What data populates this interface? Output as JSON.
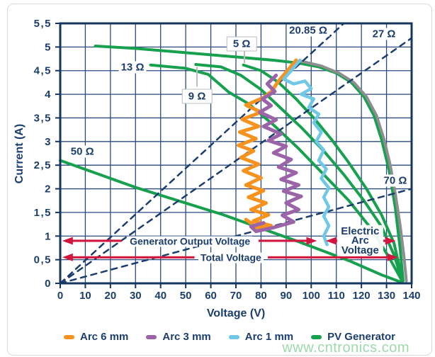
{
  "figure": {
    "watermark": "www.cntronics.com"
  },
  "colors": {
    "navy": "#1c3e6e",
    "grid": "#2a4a80",
    "frame": "#16355f",
    "green": "#17a14e",
    "gray_curve": "#8c8e90",
    "orange": "#f6921e",
    "purple": "#9b63a8",
    "cyan": "#6fc8e5",
    "red": "#d2173f",
    "leader": "#b9bcbf",
    "watermark_green": "#98d8a7"
  },
  "legend": {
    "items": [
      {
        "id": "arc-6mm",
        "label": "Arc 6 mm",
        "color": "#f6921e"
      },
      {
        "id": "arc-3mm",
        "label": "Arc 3 mm",
        "color": "#9b63a8"
      },
      {
        "id": "arc-1mm",
        "label": "Arc 1 mm",
        "color": "#6fc8e5"
      },
      {
        "id": "pv-generator",
        "label": "PV Generator",
        "color": "#17a14e"
      }
    ]
  },
  "chart_data": {
    "type": "line",
    "xlabel": "Voltage (V)",
    "ylabel": "Current (A)",
    "xlim": [
      0,
      140
    ],
    "ylim": [
      0,
      5.5
    ],
    "grid": true,
    "x_ticks": {
      "values": [
        0,
        10,
        20,
        30,
        40,
        50,
        60,
        70,
        80,
        90,
        100,
        110,
        120,
        130,
        140
      ],
      "labels": [
        "0",
        "10",
        "20",
        "30",
        "40",
        "50",
        "60",
        "70",
        "80",
        "90",
        "100",
        "110",
        "120",
        "130",
        "140"
      ]
    },
    "y_ticks": {
      "values": [
        0,
        0.5,
        1,
        1.5,
        2,
        2.5,
        3,
        3.5,
        4,
        4.5,
        5,
        5.5
      ],
      "labels": [
        "0",
        "0,5",
        "1",
        "1,5",
        "2",
        "2,5",
        "3",
        "3,5",
        "4",
        "4,5",
        "5",
        "5,5"
      ]
    },
    "series": [
      {
        "id": "load-50ohm",
        "color": "#17a14e",
        "style": "solid",
        "width": 4,
        "points": [
          [
            0,
            2.6
          ],
          [
            30,
            2.03
          ],
          [
            65,
            1.45
          ],
          [
            95,
            0.88
          ],
          [
            115,
            0.48
          ],
          [
            128,
            0.18
          ],
          [
            135.5,
            0.03
          ]
        ]
      },
      {
        "id": "pv-13ohm",
        "color": "#17a14e",
        "style": "solid",
        "width": 4,
        "points": [
          [
            36,
            4.62
          ],
          [
            50,
            4.55
          ],
          [
            59,
            4.42
          ],
          [
            67,
            4.05
          ],
          [
            75,
            3.8
          ],
          [
            85,
            3.35
          ],
          [
            95,
            2.85
          ],
          [
            105,
            2.3
          ],
          [
            115,
            1.75
          ],
          [
            124,
            1.15
          ],
          [
            131,
            0.55
          ],
          [
            136.2,
            0.05
          ]
        ]
      },
      {
        "id": "pv-9ohm",
        "color": "#17a14e",
        "style": "solid",
        "width": 4,
        "points": [
          [
            54,
            4.63
          ],
          [
            64,
            4.58
          ],
          [
            72,
            4.4
          ],
          [
            80,
            4.1
          ],
          [
            88,
            3.7
          ],
          [
            96,
            3.3
          ],
          [
            105,
            2.8
          ],
          [
            113,
            2.3
          ],
          [
            121,
            1.75
          ],
          [
            128,
            1.2
          ],
          [
            133,
            0.6
          ],
          [
            136.3,
            0.05
          ]
        ]
      },
      {
        "id": "pv-5ohm",
        "color": "#17a14e",
        "style": "solid",
        "width": 4,
        "points": [
          [
            73,
            4.62
          ],
          [
            80,
            4.5
          ],
          [
            87,
            4.25
          ],
          [
            94,
            3.9
          ],
          [
            101,
            3.5
          ],
          [
            108,
            3.05
          ],
          [
            115,
            2.55
          ],
          [
            122,
            2.0
          ],
          [
            128,
            1.45
          ],
          [
            133,
            0.85
          ],
          [
            136.4,
            0.05
          ]
        ]
      },
      {
        "id": "pv-main",
        "color": "#17a14e",
        "style": "solid",
        "width": 4,
        "points": [
          [
            14,
            5.02
          ],
          [
            30,
            4.97
          ],
          [
            50,
            4.88
          ],
          [
            70,
            4.79
          ],
          [
            85,
            4.72
          ],
          [
            95,
            4.66
          ],
          [
            103,
            4.58
          ],
          [
            110,
            4.45
          ],
          [
            116,
            4.25
          ],
          [
            121,
            3.95
          ],
          [
            125,
            3.55
          ],
          [
            128,
            3.05
          ],
          [
            131,
            2.4
          ],
          [
            133.5,
            1.6
          ],
          [
            135.5,
            0.7
          ],
          [
            136.6,
            0.05
          ]
        ]
      },
      {
        "id": "pv-gray",
        "color": "#8c8e90",
        "style": "solid",
        "width": 4,
        "points": [
          [
            96,
            4.7
          ],
          [
            104,
            4.6
          ],
          [
            111,
            4.45
          ],
          [
            117,
            4.25
          ],
          [
            122,
            3.95
          ],
          [
            126,
            3.55
          ],
          [
            129,
            3.05
          ],
          [
            131.5,
            2.5
          ],
          [
            133.5,
            1.9
          ],
          [
            135.5,
            1.2
          ],
          [
            137,
            0.55
          ],
          [
            137.9,
            0.05
          ]
        ]
      },
      {
        "id": "load-20.85ohm",
        "color": "#1c3e6e",
        "style": "dashed",
        "width": 2.5,
        "points": [
          [
            0,
            0
          ],
          [
            113,
            5.5
          ]
        ]
      },
      {
        "id": "load-27ohm",
        "color": "#1c3e6e",
        "style": "dashed",
        "width": 2.5,
        "points": [
          [
            0,
            0
          ],
          [
            140,
            5.19
          ]
        ]
      },
      {
        "id": "load-70ohm",
        "color": "#1c3e6e",
        "style": "dashed",
        "width": 2.5,
        "points": [
          [
            0,
            0
          ],
          [
            140,
            2.0
          ]
        ]
      },
      {
        "id": "arc-6mm",
        "color": "#f6921e",
        "style": "solid",
        "width": 5,
        "points": [
          [
            94,
            4.72
          ],
          [
            90.5,
            4.5
          ],
          [
            87,
            4.28
          ],
          [
            84,
            4.05
          ],
          [
            81,
            3.93
          ],
          [
            74,
            3.77
          ],
          [
            80,
            3.62
          ],
          [
            72.5,
            3.47
          ],
          [
            79,
            3.32
          ],
          [
            71.5,
            3.2
          ],
          [
            78,
            3.06
          ],
          [
            71,
            2.92
          ],
          [
            77,
            2.8
          ],
          [
            72,
            2.66
          ],
          [
            79,
            2.52
          ],
          [
            73,
            2.38
          ],
          [
            80,
            2.23
          ],
          [
            74,
            2.08
          ],
          [
            81,
            1.96
          ],
          [
            75,
            1.82
          ],
          [
            82,
            1.7
          ],
          [
            76,
            1.56
          ],
          [
            83,
            1.45
          ],
          [
            77,
            1.32
          ],
          [
            84,
            1.22
          ],
          [
            78.5,
            1.18
          ],
          [
            74,
            1.35
          ]
        ]
      },
      {
        "id": "arc-3mm",
        "color": "#9b63a8",
        "style": "solid",
        "width": 5,
        "points": [
          [
            86,
            4.4
          ],
          [
            82.5,
            4.22
          ],
          [
            85.5,
            4.06
          ],
          [
            80.5,
            3.9
          ],
          [
            84,
            3.76
          ],
          [
            79.5,
            3.62
          ],
          [
            86,
            3.46
          ],
          [
            81,
            3.32
          ],
          [
            88,
            3.16
          ],
          [
            83,
            3.02
          ],
          [
            90,
            2.9
          ],
          [
            85,
            2.76
          ],
          [
            92,
            2.62
          ],
          [
            87,
            2.46
          ],
          [
            94,
            2.34
          ],
          [
            88,
            2.2
          ],
          [
            95,
            2.08
          ],
          [
            89,
            1.95
          ],
          [
            96,
            1.84
          ],
          [
            90,
            1.7
          ],
          [
            95,
            1.56
          ],
          [
            88.5,
            1.44
          ],
          [
            93,
            1.3
          ],
          [
            85,
            1.18
          ],
          [
            78,
            1.1
          ],
          [
            76,
            1.2
          ],
          [
            81,
            1.28
          ]
        ]
      },
      {
        "id": "arc-1mm",
        "color": "#6fc8e5",
        "style": "solid",
        "width": 4.5,
        "points": [
          [
            95.5,
            4.72
          ],
          [
            92,
            4.5
          ],
          [
            89,
            4.32
          ],
          [
            93,
            4.22
          ],
          [
            97.5,
            4.28
          ],
          [
            100,
            4.12
          ],
          [
            96,
            4.0
          ],
          [
            101,
            3.9
          ],
          [
            99,
            3.72
          ],
          [
            103,
            3.58
          ],
          [
            101,
            3.4
          ],
          [
            104,
            3.2
          ],
          [
            102,
            3.0
          ],
          [
            105,
            2.82
          ],
          [
            103,
            2.6
          ],
          [
            106,
            2.42
          ],
          [
            104,
            2.22
          ],
          [
            107,
            2.02
          ],
          [
            105,
            1.82
          ],
          [
            107,
            1.62
          ],
          [
            105,
            1.42
          ],
          [
            107,
            1.22
          ],
          [
            105,
            1.0
          ],
          [
            106.3,
            0.82
          ]
        ]
      }
    ],
    "resistance_labels": [
      {
        "id": "13ohm",
        "text": "13 Ω",
        "x": 28.8,
        "y": 4.57,
        "boxed": false
      },
      {
        "id": "9ohm",
        "text": "9 Ω",
        "x": 54.5,
        "y": 3.95,
        "boxed": true,
        "leader": [
          [
            54.5,
            4.16
          ],
          [
            54.5,
            4.58
          ]
        ]
      },
      {
        "id": "5ohm",
        "text": "5 Ω",
        "x": 72.3,
        "y": 5.07,
        "boxed": true,
        "leader": [
          [
            73.4,
            4.93
          ],
          [
            73.4,
            4.66
          ]
        ]
      },
      {
        "id": "20.85ohm",
        "text": "20.85 Ω",
        "x": 98.8,
        "y": 5.35,
        "boxed": false
      },
      {
        "id": "27ohm",
        "text": "27 Ω",
        "x": 129,
        "y": 5.27,
        "boxed": false
      },
      {
        "id": "50ohm",
        "text": "50 Ω",
        "x": 8.8,
        "y": 2.79,
        "boxed": false
      },
      {
        "id": "70ohm",
        "text": "70 Ω",
        "x": 133.5,
        "y": 2.17,
        "boxed": false
      }
    ],
    "arrows": [
      {
        "id": "generator-output-voltage",
        "y": 0.9,
        "color": "#d2173f",
        "segments": [
          {
            "x1": 0.8,
            "x2": 24.5,
            "head": "left"
          },
          {
            "x1": 79,
            "x2": 102.3,
            "head": "right"
          }
        ],
        "caption": {
          "lines": [
            "Generator Output Voltage"
          ],
          "x": 51.7,
          "y": 0.88
        }
      },
      {
        "id": "electric-arc-voltage",
        "y": 0.9,
        "color": "#d2173f",
        "segments": [
          {
            "x1": 105.8,
            "x2": 111,
            "head": "left"
          },
          {
            "x1": 128.7,
            "x2": 133.7,
            "head": "right"
          }
        ],
        "caption": {
          "lines": [
            "Electric",
            "Arc",
            "Voltage"
          ],
          "x": 119.5,
          "y": 0.9
        }
      },
      {
        "id": "total-voltage",
        "y": 0.55,
        "color": "#d2173f",
        "segments": [
          {
            "x1": 0.8,
            "x2": 53.5,
            "head": "left"
          },
          {
            "x1": 82.7,
            "x2": 134.6,
            "head": "right"
          }
        ],
        "caption": {
          "lines": [
            "Total Voltage"
          ],
          "x": 68,
          "y": 0.54
        }
      }
    ]
  }
}
